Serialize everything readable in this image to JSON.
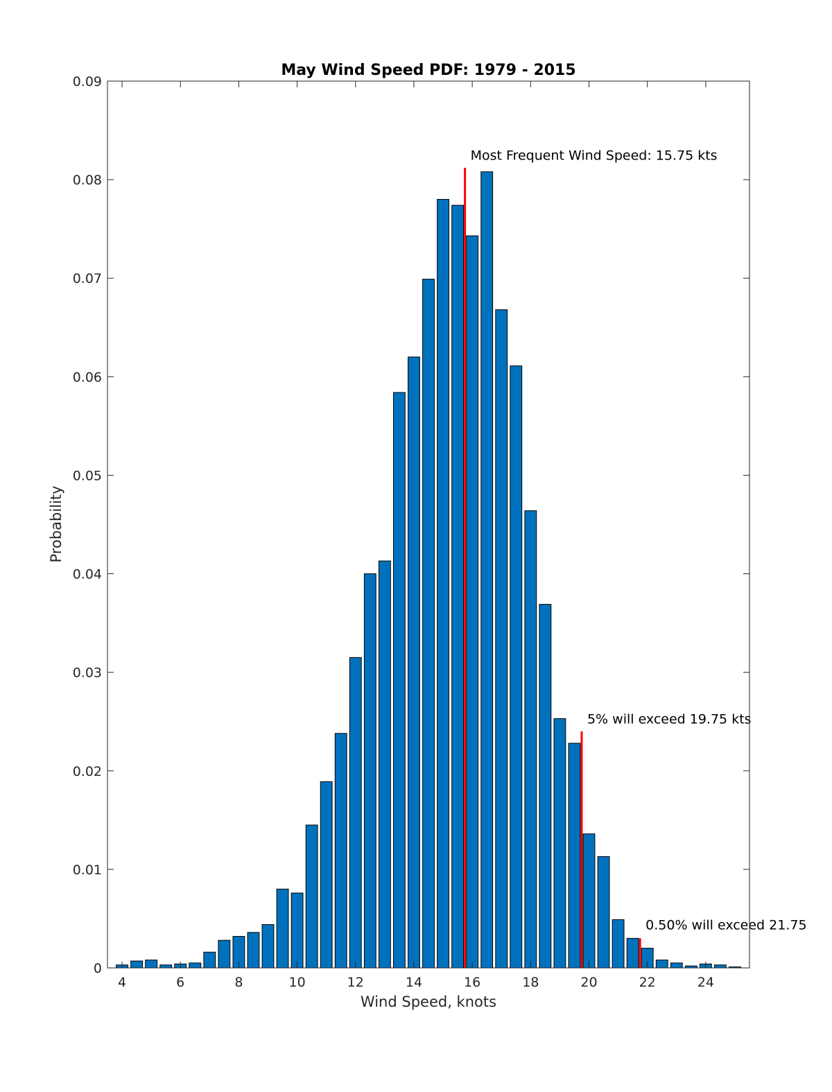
{
  "chart_data": {
    "type": "bar",
    "title": "May Wind Speed PDF: 1979 - 2015",
    "xlabel": "Wind Speed, knots",
    "ylabel": "Probability",
    "xlim": [
      3.5,
      25.5
    ],
    "ylim": [
      0,
      0.09
    ],
    "xticks": [
      4,
      6,
      8,
      10,
      12,
      14,
      16,
      18,
      20,
      22,
      24
    ],
    "xtick_labels": [
      "4",
      "6",
      "8",
      "10",
      "12",
      "14",
      "16",
      "18",
      "20",
      "22",
      "24"
    ],
    "yticks": [
      0,
      0.01,
      0.02,
      0.03,
      0.04,
      0.05,
      0.06,
      0.07,
      0.08,
      0.09
    ],
    "ytick_labels": [
      "0",
      "0.01",
      "0.02",
      "0.03",
      "0.04",
      "0.05",
      "0.06",
      "0.07",
      "0.08",
      "0.09"
    ],
    "bar_width": 0.4,
    "x": [
      4.0,
      4.5,
      5.0,
      5.5,
      6.0,
      6.5,
      7.0,
      7.5,
      8.0,
      8.5,
      9.0,
      9.5,
      10.0,
      10.5,
      11.0,
      11.5,
      12.0,
      12.5,
      13.0,
      13.5,
      14.0,
      14.5,
      15.0,
      15.5,
      16.0,
      16.5,
      17.0,
      17.5,
      18.0,
      18.5,
      19.0,
      19.5,
      20.0,
      20.5,
      21.0,
      21.5,
      22.0,
      22.5,
      23.0,
      23.5,
      24.0,
      24.5,
      25.0
    ],
    "values": [
      0.0003,
      0.0007,
      0.0008,
      0.0003,
      0.0004,
      0.0005,
      0.0016,
      0.0028,
      0.0032,
      0.0036,
      0.0044,
      0.008,
      0.0076,
      0.0145,
      0.0189,
      0.0238,
      0.0315,
      0.04,
      0.0413,
      0.0584,
      0.062,
      0.0699,
      0.078,
      0.0774,
      0.0743,
      0.0808,
      0.0668,
      0.0611,
      0.0464,
      0.0369,
      0.0253,
      0.0228,
      0.0136,
      0.0113,
      0.0049,
      0.003,
      0.002,
      0.0008,
      0.0005,
      0.0002,
      0.0004,
      0.0003,
      0.0001
    ],
    "bar_color": "#0072BD",
    "grid": false,
    "markers": [
      {
        "x": 15.75,
        "y_top": 0.0812,
        "color": "#ff0000",
        "label": "Most Frequent Wind Speed: 15.75 kts",
        "label_x": 15.75,
        "label_y": 0.082
      },
      {
        "x": 19.75,
        "y_top": 0.024,
        "color": "#ff0000",
        "label": "5% will exceed 19.75 kts",
        "label_x": 19.75,
        "label_y": 0.0248
      },
      {
        "x": 21.75,
        "y_top": 0.003,
        "color": "#ff0000",
        "label": "0.50% will exceed 21.75",
        "label_x": 21.75,
        "label_y": 0.0039
      }
    ]
  }
}
